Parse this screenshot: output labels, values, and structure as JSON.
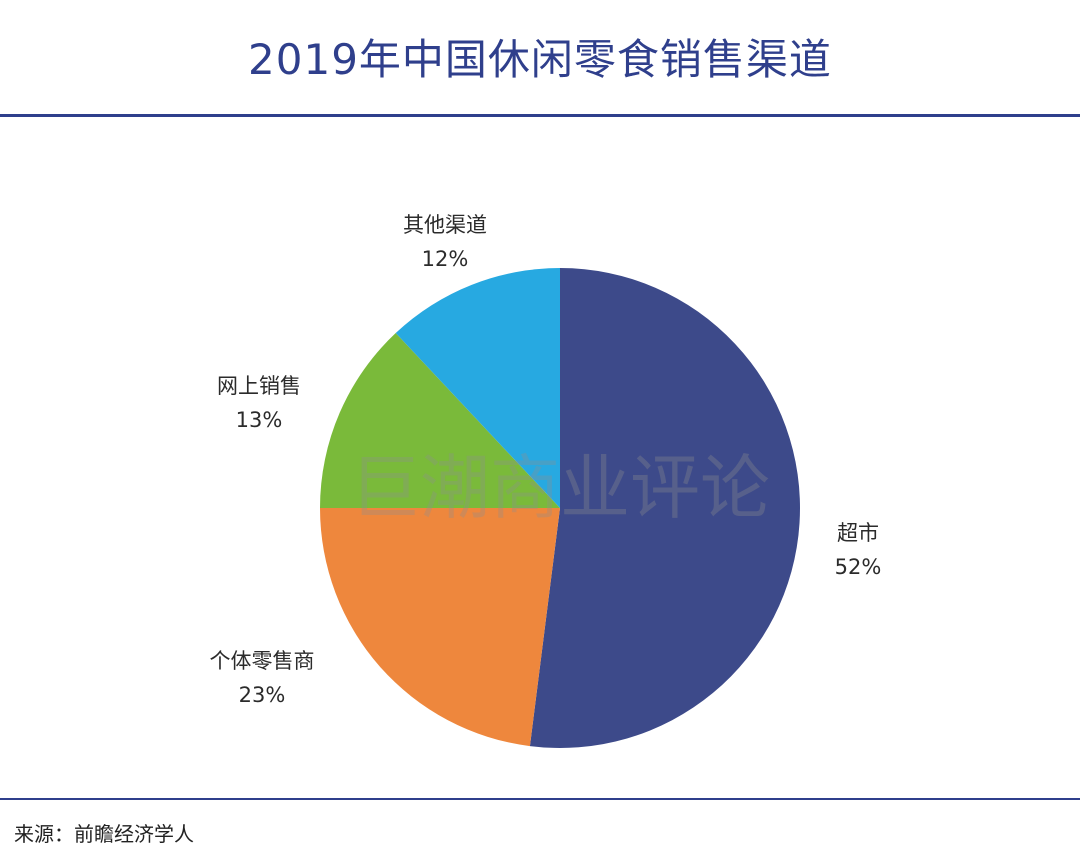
{
  "chart_data": {
    "type": "pie",
    "title": "2019年中国休闲零食销售渠道",
    "slices": [
      {
        "label": "超市",
        "value": 52,
        "value_label": "52%",
        "color": "#3d4a8a"
      },
      {
        "label": "个体零售商",
        "value": 23,
        "value_label": "23%",
        "color": "#ee873d"
      },
      {
        "label": "网上销售",
        "value": 13,
        "value_label": "13%",
        "color": "#7aba3a"
      },
      {
        "label": "其他渠道",
        "value": 12,
        "value_label": "12%",
        "color": "#27a9e1"
      }
    ],
    "start": "12 o'clock",
    "direction": "clockwise"
  },
  "watermark": "巨潮商业评论",
  "source": "来源：前瞻经济学人",
  "colors": {
    "title": "#2f3f8c",
    "rule": "#2f3f8c"
  }
}
